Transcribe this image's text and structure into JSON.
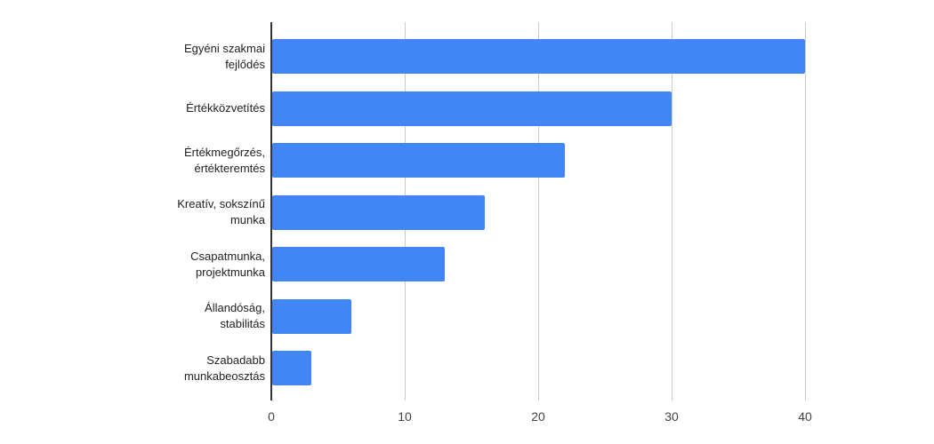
{
  "chart_data": {
    "type": "bar",
    "orientation": "horizontal",
    "title": "",
    "xlabel": "",
    "ylabel": "",
    "categories": [
      "Egyéni szakmai fejlődés",
      "Értékközvetítés",
      "Értékmegőrzés, értékteremtés",
      "Kreatív, sokszínű munka",
      "Csapatmunka, projektmunka",
      "Állandóság, stabilitás",
      "Szabadabb munkabeosztás"
    ],
    "category_lines": [
      [
        "Egyéni szakmai",
        "fejlődés"
      ],
      [
        "Értékközvetítés"
      ],
      [
        "Értékmegőrzés,",
        "értékteremtés"
      ],
      [
        "Kreatív, sokszínű",
        "munka"
      ],
      [
        "Csapatmunka,",
        "projektmunka"
      ],
      [
        "Állandóság,",
        "stabilitás"
      ],
      [
        "Szabadabb",
        "munkabeosztás"
      ]
    ],
    "values": [
      40,
      30,
      22,
      16,
      13,
      6,
      3
    ],
    "x_ticks": [
      0,
      10,
      20,
      30,
      40
    ],
    "xlim": [
      0,
      40
    ],
    "grid": true,
    "legend": "none",
    "colors": {
      "bar": "#4285f4",
      "gridline": "#cccccc",
      "baseline": "#333333",
      "tick_label": "#444444",
      "category_label": "#222222",
      "background": "#ffffff"
    }
  }
}
